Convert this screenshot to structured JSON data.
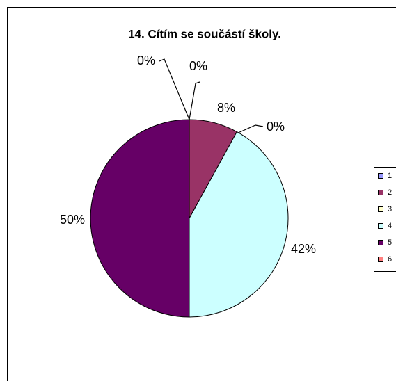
{
  "chart_data": {
    "type": "pie",
    "title": "14. Cítím se součástí školy.",
    "categories": [
      "1",
      "2",
      "3",
      "4",
      "5",
      "6"
    ],
    "values": [
      0,
      8,
      0,
      42,
      50,
      0
    ],
    "value_labels": [
      "0%",
      "8%",
      "0%",
      "42%",
      "50%",
      "0%"
    ],
    "colors": [
      "#9999ff",
      "#993366",
      "#ffffcc",
      "#ccffff",
      "#660066",
      "#ff8080"
    ],
    "legend": "right"
  }
}
